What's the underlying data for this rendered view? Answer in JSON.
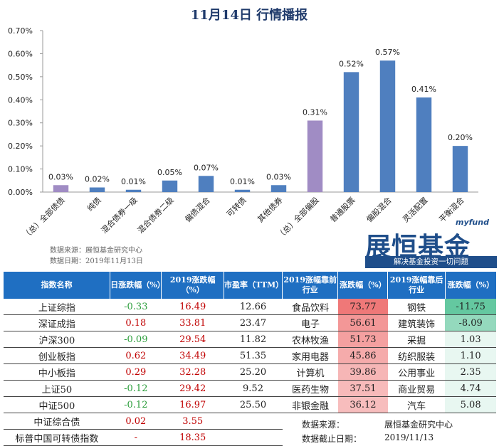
{
  "chart_data": {
    "type": "bar",
    "title": "11月14日 行情播报",
    "categories": [
      "（总）全部债债",
      "纯债",
      "混合债券一级",
      "混合债券二级",
      "偏债混合",
      "可转债",
      "其他债券",
      "（总）全部偏股",
      "普通股票",
      "偏股混合",
      "灵活配置",
      "平衡混合"
    ],
    "values": [
      0.03,
      0.02,
      0.01,
      0.05,
      0.07,
      0.01,
      0.03,
      0.31,
      0.52,
      0.57,
      0.41,
      0.2
    ],
    "value_labels": [
      "0.03%",
      "0.02%",
      "0.01%",
      "0.05%",
      "0.07%",
      "0.01%",
      "0.03%",
      "0.31%",
      "0.52%",
      "0.57%",
      "0.41%",
      "0.20%"
    ],
    "highlight_indices": [
      0,
      7
    ],
    "colors": {
      "normal": "#4f7fbf",
      "highlight": "#a08cc4"
    },
    "ylim": [
      0,
      0.7
    ],
    "yticks": [
      "0.00%",
      "0.10%",
      "0.20%",
      "0.30%",
      "0.40%",
      "0.50%",
      "0.60%",
      "0.70%"
    ],
    "grid": false
  },
  "source": {
    "line1": "数据来源：展恒基金研究中心",
    "line2": "数据日期：2019年11月13日"
  },
  "brand": {
    "small": "myfund",
    "name": "展恒基金",
    "slogan": "解决基金投资一切问题"
  },
  "left_table": {
    "headers": [
      "指数名称",
      "日涨跌幅（%）",
      "2019涨跌幅（%）",
      "市盈率（TTM）"
    ],
    "rows": [
      {
        "name": "上证综指",
        "day": "-0.33",
        "ytd": "16.49",
        "pe": "12.66",
        "day_color": "green"
      },
      {
        "name": "深证成指",
        "day": "0.18",
        "ytd": "33.81",
        "pe": "23.47",
        "day_color": "red"
      },
      {
        "name": "沪深300",
        "day": "-0.09",
        "ytd": "29.54",
        "pe": "11.82",
        "day_color": "green"
      },
      {
        "name": "创业板指",
        "day": "0.62",
        "ytd": "34.49",
        "pe": "51.35",
        "day_color": "red"
      },
      {
        "name": "中小板指",
        "day": "0.29",
        "ytd": "32.28",
        "pe": "25.20",
        "day_color": "red"
      },
      {
        "name": "上证50",
        "day": "-0.12",
        "ytd": "29.42",
        "pe": "9.52",
        "day_color": "green"
      },
      {
        "name": "中证500",
        "day": "-0.12",
        "ytd": "16.97",
        "pe": "25.50",
        "day_color": "green"
      },
      {
        "name": "中证综合债",
        "day": "0.02",
        "ytd": "3.55",
        "pe": "",
        "day_color": "red"
      },
      {
        "name": "标普中国可转债指数",
        "day": "-",
        "ytd": "18.35",
        "pe": "",
        "day_color": "red"
      }
    ]
  },
  "right_table": {
    "headers": [
      "2019涨幅靠前行业",
      "涨跌幅（%）",
      "2019涨幅靠后行业",
      "涨跌幅（%）"
    ],
    "rows": [
      {
        "top": "食品饮料",
        "top_v": "73.77",
        "bot": "钢铁",
        "bot_v": "-11.75"
      },
      {
        "top": "电子",
        "top_v": "56.61",
        "bot": "建筑装饰",
        "bot_v": "-8.09"
      },
      {
        "top": "农林牧渔",
        "top_v": "51.73",
        "bot": "采掘",
        "bot_v": "1.03"
      },
      {
        "top": "家用电器",
        "top_v": "45.86",
        "bot": "纺织服装",
        "bot_v": "1.10"
      },
      {
        "top": "计算机",
        "top_v": "39.86",
        "bot": "公用事业",
        "bot_v": "2.35"
      },
      {
        "top": "医药生物",
        "top_v": "37.51",
        "bot": "商业贸易",
        "bot_v": "4.74"
      },
      {
        "top": "非银金融",
        "top_v": "36.12",
        "bot": "汽车",
        "bot_v": "5.08"
      }
    ],
    "top_max": 73.77,
    "bot_min": -11.75,
    "footer": {
      "src_label": "数据来源：",
      "src_value": "展恒基金研究中心",
      "date_label": "数据截止日期：",
      "date_value": "2019/11/13"
    }
  }
}
